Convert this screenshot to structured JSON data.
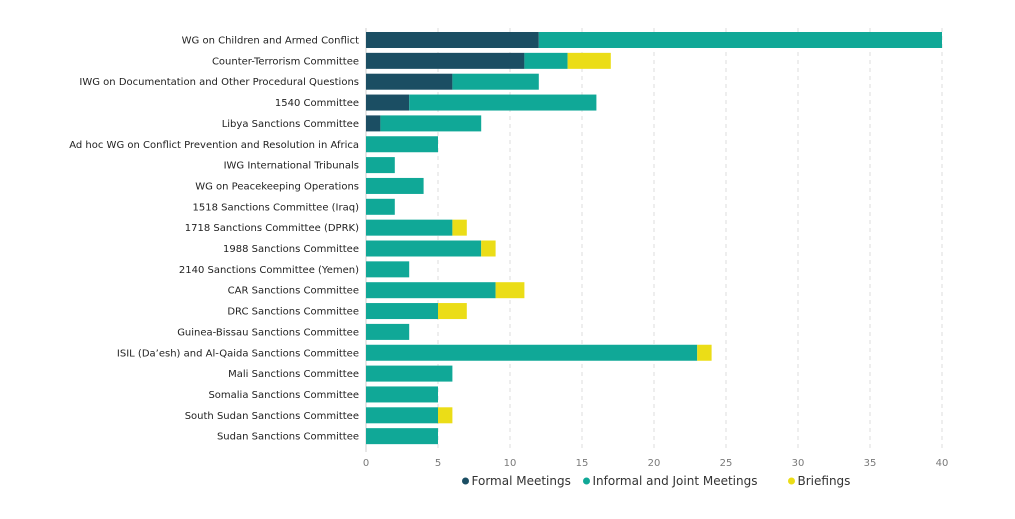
{
  "chart_data": {
    "type": "bar",
    "orientation": "horizontal",
    "stacked": true,
    "title": "",
    "xlabel": "",
    "ylabel": "",
    "xlim": [
      0,
      40
    ],
    "xticks": [
      0,
      5,
      10,
      15,
      20,
      25,
      30,
      35,
      40
    ],
    "grid": true,
    "legend_position": "bottom",
    "categories": [
      "WG on Children and Armed Conflict",
      "Counter-Terrorism Committee",
      "IWG on Documentation and Other Procedural Questions",
      "1540 Committee",
      "Libya Sanctions Committee",
      "Ad hoc WG on Conflict Prevention and Resolution in Africa",
      "IWG International Tribunals",
      "WG on Peacekeeping Operations",
      "1518 Sanctions Committee (Iraq)",
      "1718 Sanctions Committee (DPRK)",
      "1988 Sanctions Committee",
      "2140 Sanctions Committee (Yemen)",
      "CAR Sanctions Committee",
      "DRC Sanctions Committee",
      "Guinea-Bissau Sanctions Committee",
      "ISIL (Da’esh) and Al-Qaida Sanctions Committee",
      "Mali Sanctions Committee",
      "Somalia Sanctions Committee",
      "South Sudan Sanctions Committee",
      "Sudan Sanctions Committee"
    ],
    "series": [
      {
        "name": "Formal Meetings",
        "color": "#1b4e63",
        "values": [
          12,
          11,
          6,
          3,
          1,
          0,
          0,
          0,
          0,
          0,
          0,
          0,
          0,
          0,
          0,
          0,
          0,
          0,
          0,
          0
        ]
      },
      {
        "name": "Informal and Joint Meetings",
        "color": "#10a897",
        "values": [
          28,
          3,
          6,
          13,
          7,
          5,
          2,
          4,
          2,
          6,
          8,
          3,
          9,
          5,
          3,
          23,
          6,
          5,
          5,
          5
        ]
      },
      {
        "name": "Briefings",
        "color": "#ebdd17",
        "values": [
          0,
          3,
          0,
          0,
          0,
          0,
          0,
          0,
          0,
          1,
          1,
          0,
          2,
          2,
          0,
          1,
          0,
          0,
          1,
          0
        ]
      }
    ]
  }
}
